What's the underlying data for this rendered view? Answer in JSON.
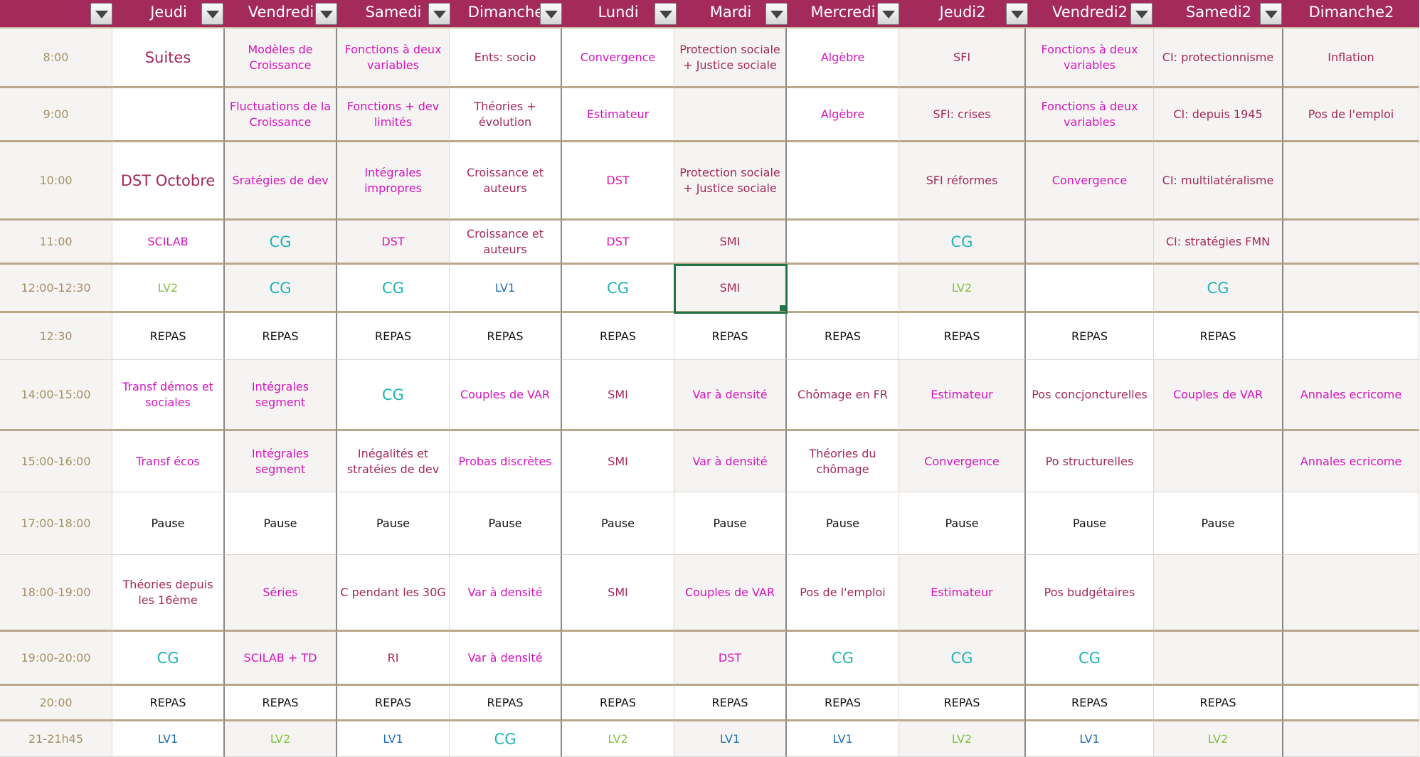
{
  "headers": [
    "",
    "Jeudi",
    "Vendredi",
    "Samedi",
    "Dimanche",
    "Lundi",
    "Mardi",
    "Mercredi",
    "Jeudi2",
    "Vendredi2",
    "Samedi2",
    "Dimanche2"
  ],
  "header_filter_icon": "dropdown-arrow-icon",
  "colors": {
    "header_bg": "#a52a5c",
    "course_text": "#d414bd",
    "maroon_text": "#a3285a",
    "cg_text": "#21b3b3",
    "lv1_text": "#1f6fb8",
    "lv2_text": "#80c341",
    "time_text": "#a59064",
    "selection": "#217346"
  },
  "selected_cell": "Mardi 12:00-12:30",
  "rows": [
    {
      "time": "8:00",
      "cells": [
        "Suites",
        "Modèles de Croissance",
        "Fonctions à deux variables",
        "Ents: socio",
        "Convergence",
        "Protection sociale + Justice sociale",
        "Algèbre",
        "SFI",
        "Fonctions à deux variables",
        "CI: protectionnisme",
        "Inflation"
      ]
    },
    {
      "time": "9:00",
      "cells": [
        "",
        "Fluctuations de la Croissance",
        "Fonctions + dev limités",
        "Théories + évolution",
        "Estimateur",
        "",
        "Algèbre",
        "SFI: crises",
        "Fonctions à deux variables",
        "CI: depuis 1945",
        "Pos de l'emploi"
      ]
    },
    {
      "time": "10:00",
      "cells": [
        "DST Octobre",
        "Sratégies de dev",
        "Intégrales impropres",
        "Croissance et auteurs",
        "DST",
        "Protection sociale + Justice sociale",
        "",
        "SFI réformes",
        "Convergence",
        "CI: multilatéralisme",
        ""
      ]
    },
    {
      "time": "11:00",
      "cells": [
        "SCILAB",
        "CG",
        "DST",
        "Croissance et auteurs",
        "DST",
        "SMI",
        "",
        "CG",
        "",
        "CI: stratégies FMN",
        ""
      ]
    },
    {
      "time": "12:00-12:30",
      "cells": [
        "LV2",
        "CG",
        "CG",
        "LV1",
        "CG",
        "SMI",
        "",
        "LV2",
        "",
        "CG",
        ""
      ]
    },
    {
      "time": "12:30",
      "cells": [
        "REPAS",
        "REPAS",
        "REPAS",
        "REPAS",
        "REPAS",
        "REPAS",
        "REPAS",
        "REPAS",
        "REPAS",
        "REPAS",
        ""
      ]
    },
    {
      "time": "14:00-15:00",
      "cells": [
        "Transf démos et sociales",
        "Intégrales segment",
        "CG",
        "Couples de VAR",
        "SMI",
        "Var à densité",
        "Chômage en FR",
        "Estimateur",
        "Pos concjoncturelles",
        "Couples de VAR",
        "Annales ecricome"
      ]
    },
    {
      "time": "15:00-16:00",
      "cells": [
        "Transf écos",
        "Intégrales segment",
        "Inégalités et stratéies de dev",
        "Probas discrètes",
        "SMI",
        "Var à densité",
        "Théories du chômage",
        "Convergence",
        "Po structurelles",
        "",
        "Annales ecricome"
      ]
    },
    {
      "time": "17:00-18:00",
      "cells": [
        "Pause",
        "Pause",
        "Pause",
        "Pause",
        "Pause",
        "Pause",
        "Pause",
        "Pause",
        "Pause",
        "Pause",
        ""
      ]
    },
    {
      "time": "18:00-19:00",
      "cells": [
        "Théories depuis les 16ème",
        "Séries",
        "C pendant les 30G",
        "Var à densité",
        "SMI",
        "Couples de VAR",
        "Pos de l'emploi",
        "Estimateur",
        "Pos budgétaires",
        "",
        ""
      ]
    },
    {
      "time": "19:00-20:00",
      "cells": [
        "CG",
        "SCILAB + TD",
        "RI",
        "Var à densité",
        "",
        "DST",
        "CG",
        "CG",
        "CG",
        "",
        ""
      ]
    },
    {
      "time": "20:00",
      "cells": [
        "REPAS",
        "REPAS",
        "REPAS",
        "REPAS",
        "REPAS",
        "REPAS",
        "REPAS",
        "REPAS",
        "REPAS",
        "REPAS",
        ""
      ]
    },
    {
      "time": "21-21h45",
      "cells": [
        "LV1",
        "LV2",
        "LV1",
        "CG",
        "LV2",
        "LV1",
        "LV1",
        "LV2",
        "LV1",
        "LV2",
        ""
      ]
    }
  ]
}
